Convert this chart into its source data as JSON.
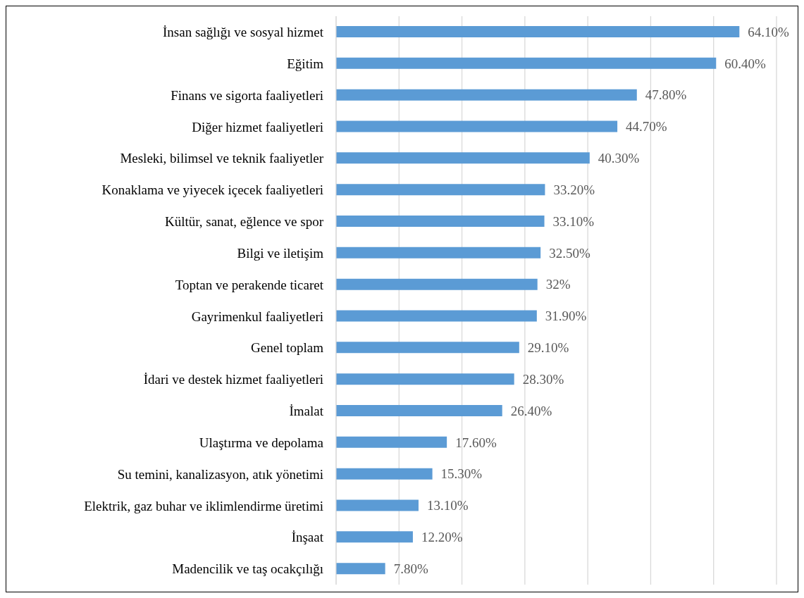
{
  "chart_data": {
    "type": "bar",
    "orientation": "horizontal",
    "categories": [
      "İnsan sağlığı ve sosyal hizmet",
      "Eğitim",
      "Finans ve sigorta faaliyetleri",
      "Diğer hizmet faaliyetleri",
      "Mesleki, bilimsel ve teknik faaliyetler",
      "Konaklama ve yiyecek içecek faaliyetleri",
      "Kültür, sanat, eğlence ve spor",
      "Bilgi ve iletişim",
      "Toptan ve perakende ticaret",
      "Gayrimenkul faaliyetleri",
      "Genel toplam",
      "İdari ve destek hizmet faaliyetleri",
      "İmalat",
      "Ulaştırma ve depolama",
      "Su temini, kanalizasyon, atık yönetimi",
      "Elektrik, gaz buhar ve iklimlendirme üretimi",
      "İnşaat",
      "Madencilik ve taş ocakçılığı"
    ],
    "values": [
      64.1,
      60.4,
      47.8,
      44.7,
      40.3,
      33.2,
      33.1,
      32.5,
      32,
      31.9,
      29.1,
      28.3,
      26.4,
      17.6,
      15.3,
      13.1,
      12.2,
      7.8
    ],
    "value_labels": [
      "64.10%",
      "60.40%",
      "47.80%",
      "44.70%",
      "40.30%",
      "33.20%",
      "33.10%",
      "32.50%",
      "32%",
      "31.90%",
      "29.10%",
      "28.30%",
      "26.40%",
      "17.60%",
      "15.30%",
      "13.10%",
      "12.20%",
      "7.80%"
    ],
    "color": "#5b9bd5",
    "xlim": [
      0,
      70
    ],
    "xticks": [
      {
        "value": 0,
        "label": null
      },
      {
        "value": 10,
        "label": null
      },
      {
        "value": 20,
        "label": null
      },
      {
        "value": 30,
        "label": null
      },
      {
        "value": 40,
        "label": null
      },
      {
        "value": 50,
        "label": null
      },
      {
        "value": 60,
        "label": null
      },
      {
        "value": 70,
        "label": null
      }
    ],
    "tick_labels": "y",
    "grid": "x",
    "legend": false
  }
}
